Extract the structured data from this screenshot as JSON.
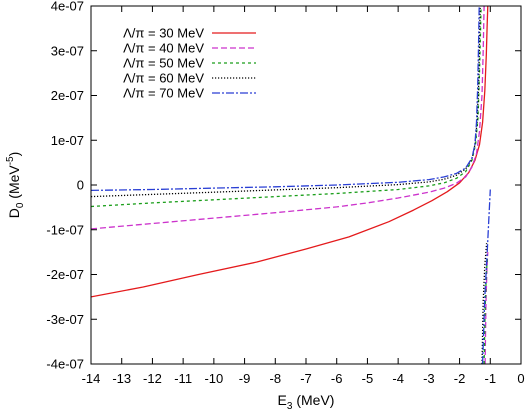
{
  "chart_data": {
    "type": "line",
    "xlabel": "E",
    "xlabel_sub": "3",
    "xlabel_unit": " (MeV)",
    "ylabel": "D",
    "ylabel_sub": "0",
    "ylabel_unit_pre": " (MeV",
    "ylabel_unit_sup": "-5",
    "ylabel_unit_post": ")",
    "xlim": [
      -14,
      0
    ],
    "ylim": [
      -4e-07,
      4e-07
    ],
    "xticks": [
      -14,
      -13,
      -12,
      -11,
      -10,
      -9,
      -8,
      -7,
      -6,
      -5,
      -4,
      -3,
      -2,
      -1,
      0
    ],
    "xtick_labels": [
      "-14",
      "-13",
      "-12",
      "-11",
      "-10",
      "-9",
      "-8",
      "-7",
      "-6",
      "-5",
      "-4",
      "-3",
      "-2",
      "-1",
      "0"
    ],
    "yticks": [
      -4e-07,
      -3e-07,
      -2e-07,
      -1e-07,
      0,
      1e-07,
      2e-07,
      3e-07,
      4e-07
    ],
    "ytick_labels": [
      "-4e-07",
      "-3e-07",
      "-2e-07",
      "-1e-07",
      "0",
      "1e-07",
      "2e-07",
      "3e-07",
      "4e-07"
    ],
    "grid": false,
    "legend_position": "top-left",
    "series": [
      {
        "name": "Λ/π = 30 MeV",
        "color": "#e41a1c",
        "dash": "solid",
        "segments": [
          [
            [
              -14,
              -2.5e-07
            ],
            [
              -12.3,
              -2.28e-07
            ],
            [
              -10.5,
              -2e-07
            ],
            [
              -8.6,
              -1.72e-07
            ],
            [
              -7.0,
              -1.43e-07
            ],
            [
              -5.6,
              -1.16e-07
            ],
            [
              -4.3,
              -8.2e-08
            ],
            [
              -3.5,
              -5.6e-08
            ],
            [
              -2.9,
              -3.5e-08
            ],
            [
              -2.4,
              -1.5e-08
            ],
            [
              -2.0,
              5e-09
            ],
            [
              -1.7,
              2.8e-08
            ],
            [
              -1.5,
              5.5e-08
            ],
            [
              -1.35,
              9e-08
            ],
            [
              -1.25,
              1.4e-07
            ],
            [
              -1.18,
              2.1e-07
            ],
            [
              -1.13,
              2.9e-07
            ],
            [
              -1.1,
              3.6e-07
            ],
            [
              -1.08,
              4e-07
            ]
          ]
        ]
      },
      {
        "name": "Λ/π = 40 MeV",
        "color": "#cc33cc",
        "dash": "dashed",
        "segments": [
          [
            [
              -14,
              -9.8e-08
            ],
            [
              -12,
              -8.6e-08
            ],
            [
              -10,
              -7.4e-08
            ],
            [
              -8,
              -6.2e-08
            ],
            [
              -6,
              -4.9e-08
            ],
            [
              -5,
              -4e-08
            ],
            [
              -4,
              -2.9e-08
            ],
            [
              -3,
              -1.6e-08
            ],
            [
              -2.5,
              -7e-09
            ],
            [
              -2.1,
              4e-09
            ],
            [
              -1.8,
              1.8e-08
            ],
            [
              -1.6,
              4e-08
            ],
            [
              -1.45,
              7e-08
            ],
            [
              -1.35,
              1.2e-07
            ],
            [
              -1.27,
              2e-07
            ],
            [
              -1.23,
              3e-07
            ],
            [
              -1.2,
              4e-07
            ]
          ],
          [
            [
              -1.17,
              -4e-07
            ],
            [
              -1.14,
              -2.6e-07
            ],
            [
              -1.11,
              -1.9e-07
            ],
            [
              -1.08,
              -1.5e-07
            ]
          ]
        ]
      },
      {
        "name": "Λ/π = 50 MeV",
        "color": "#1a9e1a",
        "dash": "shortdash",
        "segments": [
          [
            [
              -14,
              -4.8e-08
            ],
            [
              -12,
              -4e-08
            ],
            [
              -10,
              -3.3e-08
            ],
            [
              -8,
              -2.6e-08
            ],
            [
              -6,
              -1.9e-08
            ],
            [
              -4,
              -1e-08
            ],
            [
              -3,
              -2e-09
            ],
            [
              -2.5,
              5e-09
            ],
            [
              -2.1,
              1.5e-08
            ],
            [
              -1.8,
              3e-08
            ],
            [
              -1.6,
              5.5e-08
            ],
            [
              -1.48,
              9e-08
            ],
            [
              -1.4,
              1.5e-07
            ],
            [
              -1.35,
              2.5e-07
            ],
            [
              -1.32,
              3.4e-07
            ],
            [
              -1.3,
              4e-07
            ]
          ],
          [
            [
              -1.2,
              -4e-07
            ],
            [
              -1.17,
              -2.8e-07
            ],
            [
              -1.13,
              -2e-07
            ],
            [
              -1.09,
              -1.6e-07
            ]
          ]
        ]
      },
      {
        "name": "Λ/π = 60 MeV",
        "color": "#000000",
        "dash": "dotted",
        "segments": [
          [
            [
              -14,
              -2.6e-08
            ],
            [
              -12,
              -2.1e-08
            ],
            [
              -10,
              -1.6e-08
            ],
            [
              -8,
              -1.1e-08
            ],
            [
              -6,
              -6e-09
            ],
            [
              -4,
              1e-09
            ],
            [
              -3,
              7e-09
            ],
            [
              -2.5,
              1.3e-08
            ],
            [
              -2.1,
              2.2e-08
            ],
            [
              -1.8,
              3.6e-08
            ],
            [
              -1.6,
              5.8e-08
            ],
            [
              -1.5,
              9e-08
            ],
            [
              -1.43,
              1.4e-07
            ],
            [
              -1.38,
              2.2e-07
            ],
            [
              -1.35,
              3.2e-07
            ],
            [
              -1.33,
              4e-07
            ]
          ],
          [
            [
              -1.27,
              -4e-07
            ],
            [
              -1.23,
              -2.6e-07
            ],
            [
              -1.18,
              -1.8e-07
            ],
            [
              -1.12,
              -1.3e-07
            ]
          ]
        ]
      },
      {
        "name": "Λ/π = 70 MeV",
        "color": "#2a3fd4",
        "dash": "dashdot",
        "segments": [
          [
            [
              -14,
              -1.2e-08
            ],
            [
              -12,
              -1e-08
            ],
            [
              -10,
              -7e-09
            ],
            [
              -8,
              -4e-09
            ],
            [
              -6,
              0
            ],
            [
              -4,
              6e-09
            ],
            [
              -3,
              1.2e-08
            ],
            [
              -2.5,
              1.8e-08
            ],
            [
              -2.1,
              2.6e-08
            ],
            [
              -1.8,
              3.8e-08
            ],
            [
              -1.6,
              6e-08
            ],
            [
              -1.5,
              9e-08
            ],
            [
              -1.45,
              1.4e-07
            ],
            [
              -1.41,
              2.2e-07
            ],
            [
              -1.38,
              3.2e-07
            ],
            [
              -1.36,
              4e-07
            ]
          ],
          [
            [
              -1.25,
              -4e-07
            ],
            [
              -1.18,
              -2.5e-07
            ],
            [
              -1.1,
              -1.5e-07
            ],
            [
              -1.0,
              -1e-08
            ]
          ]
        ]
      }
    ]
  }
}
